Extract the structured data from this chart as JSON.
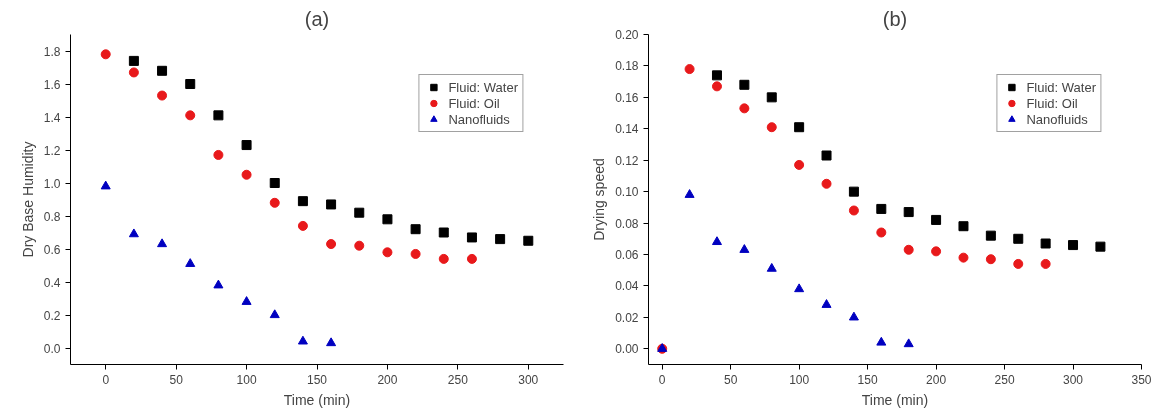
{
  "chart_data": [
    {
      "type": "scatter",
      "title": "(a)",
      "xlabel": "Time (min)",
      "ylabel": "Dry Base Humidity",
      "xlim": [
        -25,
        325
      ],
      "xticks": [
        0,
        50,
        100,
        150,
        200,
        250,
        300
      ],
      "ylim": [
        -0.1,
        1.9
      ],
      "yticks": [
        {
          "value": 0,
          "label": "0.0"
        },
        0.2,
        0.4,
        0.6,
        0.8,
        {
          "value": 1,
          "label": "1.0"
        },
        1.2,
        1.4,
        1.6,
        1.8
      ],
      "grid": false,
      "legend": "top right",
      "series": [
        {
          "name": "Fluid: Water",
          "color": "#000000",
          "marker": "square",
          "x": [
            20,
            40,
            60,
            80,
            100,
            120,
            140,
            160,
            180,
            200,
            220,
            240,
            260,
            280,
            300
          ],
          "values": [
            1.74,
            1.68,
            1.6,
            1.41,
            1.23,
            1.0,
            0.89,
            0.87,
            0.82,
            0.78,
            0.72,
            0.7,
            0.67,
            0.66,
            0.65
          ]
        },
        {
          "name": "Fluid: Oil",
          "color": "#e8191b",
          "marker": "circle",
          "x": [
            0,
            20,
            40,
            60,
            80,
            100,
            120,
            140,
            160,
            180,
            200,
            220,
            240,
            260
          ],
          "values": [
            1.78,
            1.67,
            1.53,
            1.41,
            1.17,
            1.05,
            0.88,
            0.74,
            0.63,
            0.62,
            0.58,
            0.57,
            0.54,
            0.54
          ]
        },
        {
          "name": "Nanofluids",
          "color": "#0000c0",
          "marker": "triangle",
          "x": [
            0,
            20,
            40,
            60,
            80,
            100,
            120,
            140,
            160
          ],
          "values": [
            0.98,
            0.69,
            0.63,
            0.51,
            0.38,
            0.28,
            0.2,
            0.04,
            0.03
          ]
        }
      ]
    },
    {
      "type": "scatter",
      "title": "(b)",
      "xlabel": "Time (min)",
      "ylabel": "Drying speed",
      "xlim": [
        -10,
        350
      ],
      "xticks": [
        0,
        50,
        100,
        150,
        200,
        250,
        300,
        350
      ],
      "ylim": [
        -0.01,
        0.2
      ],
      "yticks": [
        {
          "value": 0,
          "label": "0.00"
        },
        0.02,
        0.04,
        0.06,
        0.08,
        {
          "value": 0.1,
          "label": "0.10"
        },
        0.12,
        0.14,
        0.16,
        0.18,
        {
          "value": 0.2,
          "label": "0.20"
        }
      ],
      "grid": false,
      "legend": "top right",
      "series": [
        {
          "name": "Fluid: Water",
          "color": "#000000",
          "marker": "square",
          "x": [
            40,
            60,
            80,
            100,
            120,
            140,
            160,
            180,
            200,
            220,
            240,
            260,
            280,
            300,
            320
          ],
          "values": [
            0.174,
            0.168,
            0.16,
            0.141,
            0.123,
            0.1,
            0.089,
            0.087,
            0.082,
            0.078,
            0.072,
            0.07,
            0.067,
            0.066,
            0.065
          ]
        },
        {
          "name": "Fluid: Oil",
          "color": "#e8191b",
          "marker": "circle",
          "x": [
            0,
            20,
            40,
            60,
            80,
            100,
            120,
            140,
            160,
            180,
            200,
            220,
            240,
            260,
            280
          ],
          "values": [
            0,
            0.178,
            0.167,
            0.153,
            0.141,
            0.117,
            0.105,
            0.088,
            0.074,
            0.063,
            0.062,
            0.058,
            0.057,
            0.054,
            0.054
          ]
        },
        {
          "name": "Nanofluids",
          "color": "#0000c0",
          "marker": "triangle",
          "x": [
            0,
            20,
            40,
            60,
            80,
            100,
            120,
            140,
            160,
            180
          ],
          "values": [
            0,
            0.098,
            0.068,
            0.063,
            0.051,
            0.038,
            0.028,
            0.02,
            0.004,
            0.003
          ]
        }
      ]
    }
  ]
}
